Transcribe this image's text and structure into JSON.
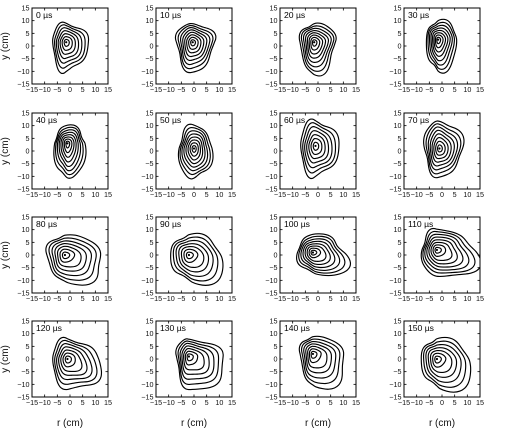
{
  "figure": {
    "rows": 4,
    "cols": 4,
    "xlabel": "r (cm)",
    "ylabel": "y (cm)",
    "xticks": [
      "−15",
      "−10",
      "−5",
      "0",
      "5",
      "10",
      "15"
    ],
    "yticks": [
      "15",
      "10",
      "5",
      "0",
      "−5",
      "−10",
      "−15"
    ]
  },
  "chart_data": {
    "type": "contour",
    "xlim": [
      -15,
      15
    ],
    "ylim": [
      -15,
      15
    ],
    "xlabel": "r (cm)",
    "ylabel": "y (cm)",
    "grid": false,
    "panels": [
      {
        "time_label": "0 µs",
        "center": [
          -1.5,
          1.5
        ],
        "levels": 7,
        "outer_extent": [
          -7,
          7,
          -10,
          9
        ],
        "tail": false
      },
      {
        "time_label": "10 µs",
        "center": [
          -0.5,
          1.5
        ],
        "levels": 8,
        "outer_extent": [
          -7,
          8,
          -10,
          9
        ],
        "tail": false
      },
      {
        "time_label": "20 µs",
        "center": [
          -1.5,
          1.5
        ],
        "levels": 8,
        "outer_extent": [
          -7,
          7,
          -11,
          9
        ],
        "tail": false
      },
      {
        "time_label": "30 µs",
        "center": [
          -1.5,
          2.5
        ],
        "levels": 8,
        "outer_extent": [
          -6,
          6,
          -10,
          10
        ],
        "tail": false
      },
      {
        "time_label": "40 µs",
        "center": [
          -1.0,
          3.0
        ],
        "levels": 8,
        "outer_extent": [
          -6,
          6,
          -11,
          10
        ],
        "tail": false
      },
      {
        "time_label": "50 µs",
        "center": [
          0.0,
          1.0
        ],
        "levels": 8,
        "outer_extent": [
          -6,
          7,
          -11,
          10
        ],
        "tail": false
      },
      {
        "time_label": "60 µs",
        "center": [
          -1.0,
          2.0
        ],
        "levels": 7,
        "outer_extent": [
          -7,
          8,
          -10,
          12
        ],
        "tail": false
      },
      {
        "time_label": "70 µs",
        "center": [
          -1.0,
          1.0
        ],
        "levels": 8,
        "outer_extent": [
          -7,
          8,
          -10,
          12
        ],
        "tail": false
      },
      {
        "time_label": "80 µs",
        "center": [
          -2.0,
          0.0
        ],
        "levels": 7,
        "outer_extent": [
          -9,
          11,
          -10,
          8
        ],
        "tail": true
      },
      {
        "time_label": "90 µs",
        "center": [
          -2.0,
          0.0
        ],
        "levels": 7,
        "outer_extent": [
          -9,
          10,
          -10,
          8
        ],
        "tail": true
      },
      {
        "time_label": "100 µs",
        "center": [
          -2.0,
          1.0
        ],
        "levels": 8,
        "outer_extent": [
          -8,
          10,
          -7,
          8
        ],
        "tail": true
      },
      {
        "time_label": "110 µs",
        "center": [
          -2.0,
          2.0
        ],
        "levels": 8,
        "outer_extent": [
          -8,
          12,
          -8,
          10
        ],
        "tail": true
      },
      {
        "time_label": "120 µs",
        "center": [
          -1.0,
          0.0
        ],
        "levels": 7,
        "outer_extent": [
          -7,
          10,
          -11,
          8
        ],
        "tail": true
      },
      {
        "time_label": "130 µs",
        "center": [
          -2.0,
          1.0
        ],
        "levels": 7,
        "outer_extent": [
          -7,
          10,
          -11,
          8
        ],
        "tail": true
      },
      {
        "time_label": "140 µs",
        "center": [
          -2.0,
          2.0
        ],
        "levels": 7,
        "outer_extent": [
          -7,
          9,
          -10,
          9
        ],
        "tail": true
      },
      {
        "time_label": "150 µs",
        "center": [
          -2.0,
          0.0
        ],
        "levels": 7,
        "outer_extent": [
          -8,
          10,
          -11,
          8
        ],
        "tail": true
      }
    ]
  }
}
